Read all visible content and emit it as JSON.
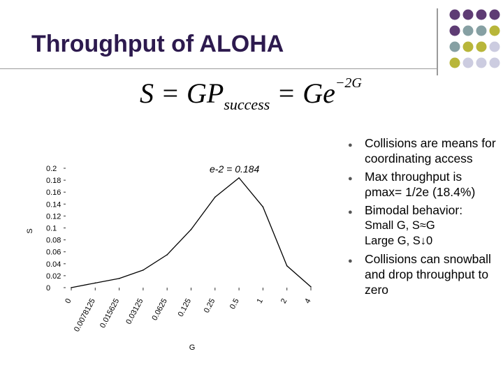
{
  "slide": {
    "title": "Throughput of ALOHA",
    "colors": {
      "title": "#2d1a4e",
      "dot_purple": "#5e3c74",
      "dot_teal": "#86a0a3",
      "dot_olive": "#b8b63a",
      "dot_lavender": "#cccce0"
    }
  },
  "formula": {
    "lhs": "S = GP",
    "sub": "success",
    "mid": " = Ge",
    "sup": "−2G"
  },
  "bullets": [
    {
      "text": "Collisions are means for coordinating access"
    },
    {
      "text": "Max throughput is ρmax= 1/2e (18.4%)"
    },
    {
      "text": "Bimodal behavior:"
    },
    {
      "sub": true,
      "text": "Small G, S≈G"
    },
    {
      "sub": true,
      "text": "Large G, S↓0"
    },
    {
      "text": "Collisions can snowball and drop throughput to zero"
    }
  ],
  "chart_data": {
    "type": "line",
    "annotation": "e-2 = 0.184",
    "xlabel": "G",
    "ylabel": "S",
    "categories": [
      "0",
      "0.0078125",
      "0.015625",
      "0.03125",
      "0.0625",
      "0.125",
      "0.25",
      "0.5",
      "1",
      "2",
      "4"
    ],
    "y_ticks": [
      "0",
      "0.02",
      "0.04",
      "0.06",
      "0.08",
      "0.1",
      "0.12",
      "0.14",
      "0.16",
      "0.18",
      "0.2"
    ],
    "ylim": [
      0,
      0.2
    ],
    "series": [
      {
        "values": [
          0,
          0.0078,
          0.0154,
          0.0294,
          0.0551,
          0.0974,
          0.1516,
          0.1839,
          0.1353,
          0.0366,
          0.0013
        ]
      }
    ],
    "line_color": "#000000"
  }
}
